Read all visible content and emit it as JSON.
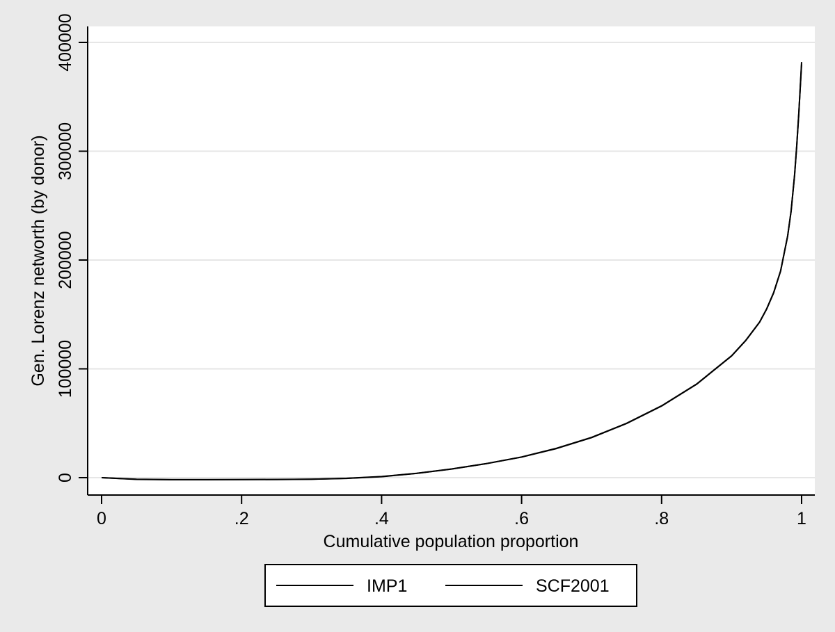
{
  "chart_data": {
    "type": "line",
    "title": "",
    "xlabel": "Cumulative population proportion",
    "ylabel": "Gen. Lorenz networth (by donor)",
    "xlim": [
      0,
      1
    ],
    "ylim": [
      0,
      400000
    ],
    "xticks": [
      0,
      0.2,
      0.4,
      0.6,
      0.8,
      1
    ],
    "xtick_labels": [
      "0",
      ".2",
      ".4",
      ".6",
      ".8",
      "1"
    ],
    "yticks": [
      0,
      100000,
      200000,
      300000,
      400000
    ],
    "ytick_labels": [
      "0",
      "100000",
      "200000",
      "300000",
      "400000"
    ],
    "grid": "horizontal",
    "legend_position": "bottom",
    "colors": {
      "background": "#eaeaea",
      "plot_area": "#ffffff",
      "grid": "#e6e6e6",
      "line": "#000000"
    },
    "series": [
      {
        "name": "IMP1",
        "x": [
          0,
          0.05,
          0.1,
          0.15,
          0.2,
          0.25,
          0.3,
          0.35,
          0.4,
          0.45,
          0.5,
          0.55,
          0.6,
          0.65,
          0.7,
          0.75,
          0.8,
          0.85,
          0.9,
          0.92,
          0.94,
          0.95,
          0.96,
          0.97,
          0.98,
          0.985,
          0.99,
          0.993,
          0.996,
          0.998,
          1.0
        ],
        "values": [
          0,
          -1500,
          -1800,
          -1800,
          -1700,
          -1600,
          -1400,
          -600,
          1000,
          4000,
          8000,
          13000,
          19000,
          27000,
          37000,
          50000,
          66000,
          86000,
          112000,
          126000,
          143000,
          155000,
          170000,
          190000,
          222000,
          245000,
          278000,
          305000,
          335000,
          358000,
          382000
        ]
      },
      {
        "name": "SCF2001",
        "x": [
          0,
          0.05,
          0.1,
          0.15,
          0.2,
          0.25,
          0.3,
          0.35,
          0.4,
          0.45,
          0.5,
          0.55,
          0.6,
          0.65,
          0.7,
          0.75,
          0.8,
          0.85,
          0.9,
          0.92,
          0.94,
          0.95,
          0.96,
          0.97,
          0.98,
          0.985,
          0.99,
          0.993,
          0.996,
          0.998,
          1.0
        ],
        "values": [
          0,
          -1600,
          -1900,
          -1900,
          -1800,
          -1700,
          -1500,
          -700,
          900,
          3900,
          7900,
          12900,
          18900,
          26800,
          36800,
          49800,
          65800,
          85800,
          111800,
          125800,
          142800,
          154800,
          169800,
          189800,
          221800,
          244800,
          277800,
          304800,
          334800,
          357800,
          380000
        ]
      }
    ]
  }
}
